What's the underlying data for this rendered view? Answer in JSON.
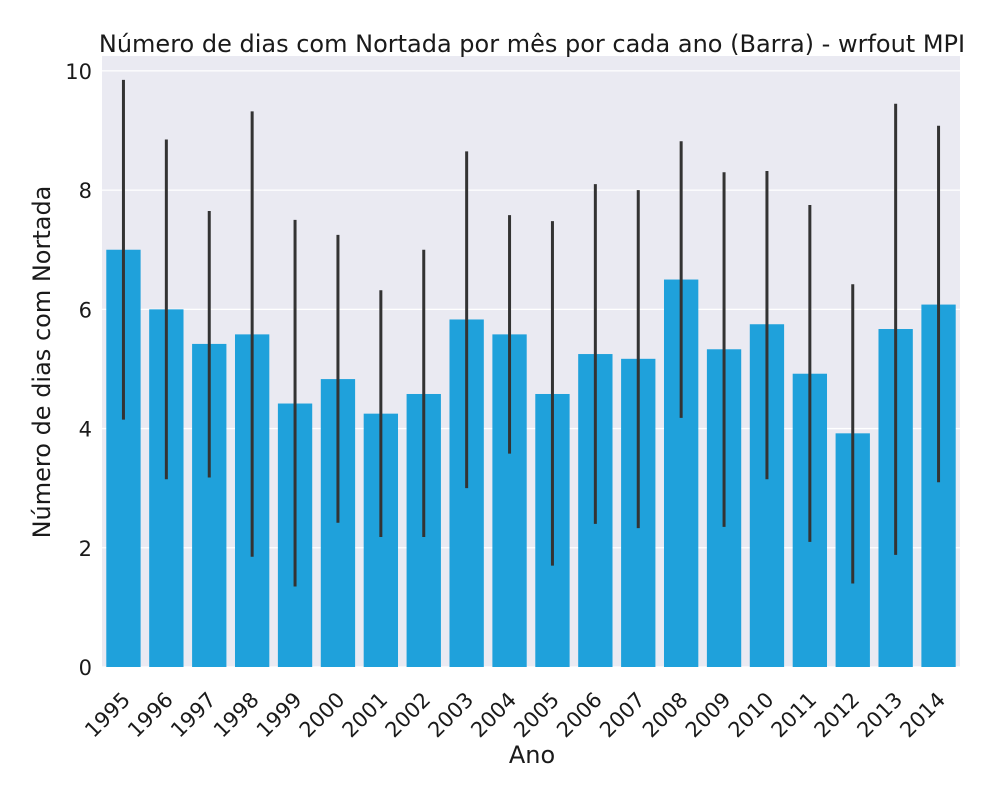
{
  "chart_data": {
    "type": "bar",
    "title": "Número de dias com Nortada por mês por cada ano  (Barra) - wrfout MPI",
    "xlabel": "Ano",
    "ylabel": "Número de dias com Nortada",
    "ylim": [
      0,
      10.25
    ],
    "yticks": [
      0,
      2,
      4,
      6,
      8,
      10
    ],
    "grid": true,
    "categories": [
      "1995",
      "1996",
      "1997",
      "1998",
      "1999",
      "2000",
      "2001",
      "2002",
      "2003",
      "2004",
      "2005",
      "2006",
      "2007",
      "2008",
      "2009",
      "2010",
      "2011",
      "2012",
      "2013",
      "2014"
    ],
    "values": [
      7.0,
      6.0,
      5.42,
      5.58,
      4.42,
      4.83,
      4.25,
      4.58,
      5.83,
      5.58,
      4.58,
      5.25,
      5.17,
      6.5,
      5.33,
      5.75,
      4.92,
      3.92,
      5.67,
      6.08
    ],
    "error_low": [
      4.15,
      3.15,
      3.18,
      1.85,
      1.35,
      2.42,
      2.18,
      2.18,
      3.0,
      3.58,
      1.7,
      2.4,
      2.33,
      4.18,
      2.35,
      3.15,
      2.1,
      1.4,
      1.88,
      3.1
    ],
    "error_high": [
      9.85,
      8.85,
      7.65,
      9.32,
      7.5,
      7.25,
      6.32,
      7.0,
      8.65,
      7.58,
      7.48,
      8.1,
      8.0,
      8.82,
      8.3,
      8.32,
      7.75,
      6.42,
      9.45,
      9.08
    ],
    "colors": {
      "bar": "#1fa1db",
      "error": "#333333",
      "plot_bg": "#eaeaf2",
      "grid": "#ffffff"
    }
  }
}
